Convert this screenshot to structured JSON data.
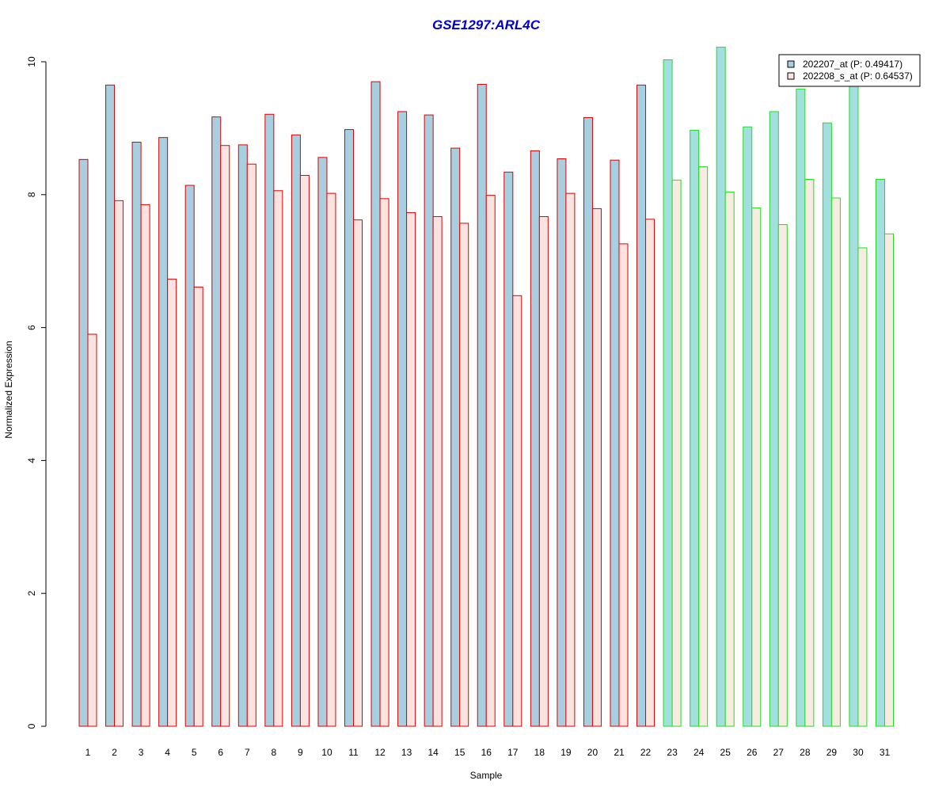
{
  "chart_data": {
    "type": "bar",
    "title": "GSE1297:ARL4C",
    "xlabel": "Sample",
    "ylabel": "Normalized Expression",
    "ylim": [
      0,
      10
    ],
    "yticks": [
      "0",
      "2",
      "4",
      "6",
      "8",
      "10"
    ],
    "categories": [
      "1",
      "2",
      "3",
      "4",
      "5",
      "6",
      "7",
      "8",
      "9",
      "10",
      "11",
      "12",
      "13",
      "14",
      "15",
      "16",
      "17",
      "18",
      "19",
      "20",
      "21",
      "22",
      "23",
      "24",
      "25",
      "26",
      "27",
      "28",
      "29",
      "30",
      "31"
    ],
    "series": [
      {
        "name": "202207_at (P: 0.49417)",
        "values": [
          8.53,
          9.65,
          8.79,
          8.86,
          8.14,
          9.17,
          8.75,
          9.21,
          8.9,
          8.56,
          8.98,
          9.7,
          9.25,
          9.2,
          8.7,
          9.66,
          8.34,
          8.66,
          8.54,
          9.16,
          8.52,
          9.65,
          10.03,
          8.97,
          10.22,
          9.02,
          9.25,
          9.59,
          9.08,
          9.7,
          8.23
        ]
      },
      {
        "name": "202208_s_at (P: 0.64537)",
        "values": [
          5.9,
          7.91,
          7.85,
          6.73,
          6.61,
          8.74,
          8.46,
          8.06,
          8.29,
          8.02,
          7.62,
          7.94,
          7.73,
          7.67,
          7.57,
          7.99,
          6.48,
          7.67,
          8.02,
          7.79,
          7.26,
          7.63,
          8.22,
          8.42,
          8.04,
          7.8,
          7.55,
          8.23,
          7.95,
          7.2,
          7.41
        ]
      }
    ],
    "group_split_index": 22,
    "colors": {
      "series1_fill": "#a7cfdf",
      "series2_fill": "#fde3e0",
      "series2_fill_group2": "#f6ece0",
      "series1_fill_group2": "#a4dfe0",
      "group1_border": "#e00000",
      "group2_border": "#22dd22",
      "title": "#0000cc"
    },
    "grid": false,
    "legend_position": "top-right"
  }
}
